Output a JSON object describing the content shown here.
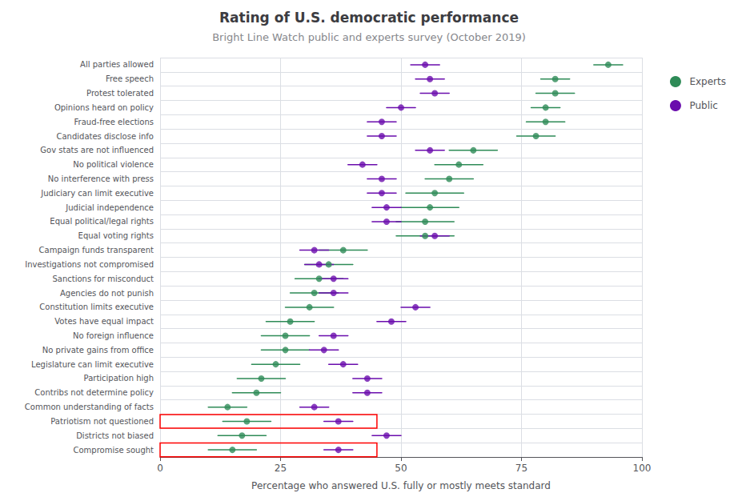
{
  "chart_data": {
    "type": "dot",
    "title": "Rating of U.S. democratic performance",
    "subtitle": "Bright Line Watch public and experts survey (October 2019)",
    "xlabel": "Percentage who answered U.S. fully or mostly meets standard",
    "categories": [
      "All parties allowed",
      "Free speech",
      "Protest tolerated",
      "Opinions heard on policy",
      "Fraud-free elections",
      "Candidates disclose info",
      "Gov stats are not influenced",
      "No political violence",
      "No interference with press",
      "Judiciary can limit executive",
      "Judicial independence",
      "Equal political/legal rights",
      "Equal voting rights",
      "Campaign funds transparent",
      "Investigations not compromised",
      "Sanctions for misconduct",
      "Agencies do not punish",
      "Constitution limits executive",
      "Votes have equal impact",
      "No foreign influence",
      "No private gains from office",
      "Legislature can limit executive",
      "Participation high",
      "Contribs not determine policy",
      "Common understanding of facts",
      "Patriotism not questioned",
      "Districts not biased",
      "Compromise sought"
    ],
    "series": [
      {
        "name": "Experts",
        "color": "#2e8b57",
        "values": [
          93,
          82,
          82,
          80,
          80,
          78,
          65,
          62,
          60,
          57,
          56,
          55,
          55,
          38,
          35,
          33,
          32,
          31,
          27,
          26,
          26,
          24,
          21,
          20,
          14,
          18,
          17,
          15
        ],
        "lo": [
          90,
          79,
          78,
          77,
          76,
          74,
          60,
          57,
          55,
          51,
          50,
          49,
          49,
          33,
          30,
          28,
          27,
          26,
          22,
          21,
          21,
          19,
          16,
          15,
          10,
          13,
          12,
          10
        ],
        "hi": [
          96,
          85,
          86,
          83,
          84,
          82,
          70,
          67,
          65,
          63,
          62,
          61,
          61,
          43,
          40,
          38,
          37,
          36,
          32,
          31,
          31,
          29,
          26,
          25,
          18,
          23,
          22,
          20
        ]
      },
      {
        "name": "Public",
        "color": "#6a0dad",
        "values": [
          55,
          56,
          57,
          50,
          46,
          46,
          56,
          42,
          46,
          46,
          47,
          47,
          57,
          32,
          33,
          36,
          36,
          53,
          48,
          36,
          34,
          38,
          43,
          43,
          32,
          37,
          47,
          37
        ],
        "lo": [
          52,
          53,
          54,
          47,
          43,
          43,
          53,
          39,
          43,
          43,
          44,
          44,
          54,
          29,
          30,
          33,
          33,
          50,
          45,
          33,
          31,
          35,
          40,
          40,
          29,
          34,
          44,
          34
        ],
        "hi": [
          58,
          59,
          60,
          53,
          49,
          49,
          59,
          45,
          49,
          49,
          50,
          50,
          60,
          35,
          36,
          39,
          39,
          56,
          51,
          39,
          37,
          41,
          46,
          46,
          35,
          40,
          50,
          40
        ]
      }
    ],
    "boxes": [
      {
        "category": "Patriotism not questioned",
        "x": [
          0,
          45
        ],
        "color": "red"
      },
      {
        "category": "Compromise sought",
        "x": [
          0,
          45
        ],
        "color": "red"
      }
    ],
    "xlim": [
      0,
      100
    ],
    "xticks": [
      0,
      25,
      50,
      75,
      100
    ],
    "grid": true,
    "legend": "right"
  }
}
